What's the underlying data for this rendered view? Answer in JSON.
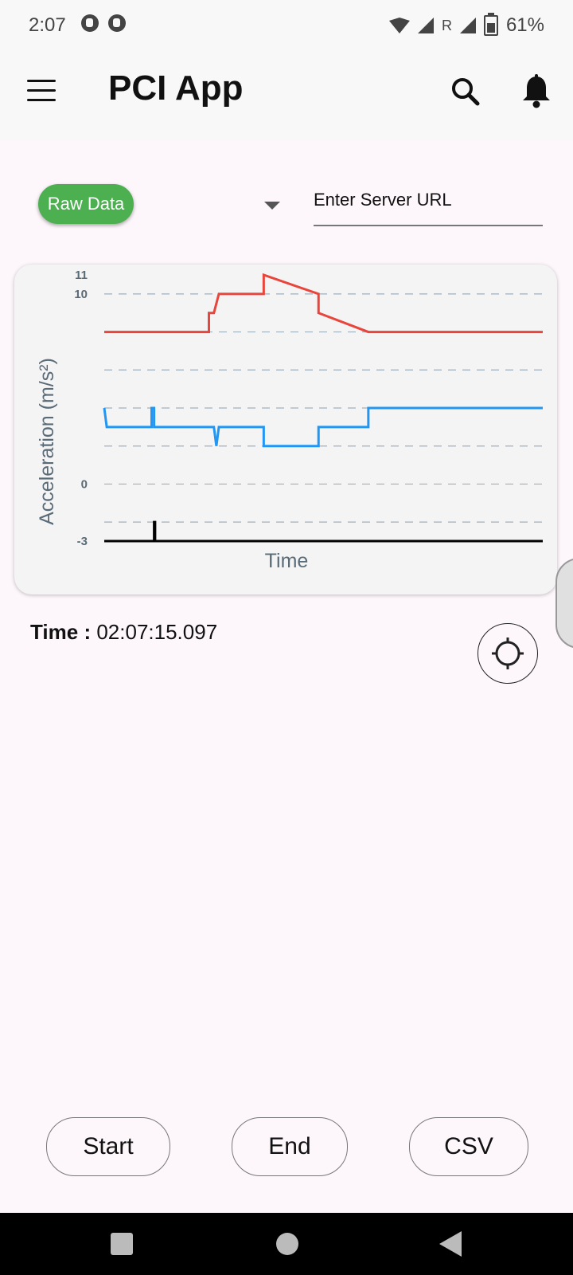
{
  "status_bar": {
    "time": "2:07",
    "network_label": "R",
    "battery": "61%"
  },
  "app_bar": {
    "title": "PCI App"
  },
  "controls": {
    "mode_chip": "Raw Data",
    "server_placeholder": "Enter Server URL"
  },
  "chart_data": {
    "type": "line",
    "ylabel": "Acceleration (m/s²)",
    "xlabel": "Time",
    "ylim": [
      -3,
      11
    ],
    "y_ticks": [
      "11",
      "10",
      "0",
      "-3"
    ],
    "grid": "horizontal dashed",
    "series": [
      {
        "color": "#e8453c",
        "x": [
          0,
          21,
          21,
          22,
          23,
          32,
          32,
          43,
          43,
          53,
          88
        ],
        "y": [
          8,
          8,
          9,
          9,
          10,
          10,
          11,
          10,
          9,
          8,
          8
        ]
      },
      {
        "color": "#2196f3",
        "x": [
          0,
          0.5,
          9.5,
          9.5,
          10,
          10,
          22,
          22.5,
          23,
          32,
          32,
          43,
          43,
          53,
          53,
          88
        ],
        "y": [
          4,
          3,
          3,
          4,
          4,
          3,
          3,
          2,
          3,
          3,
          2,
          2,
          3,
          3,
          4,
          4
        ]
      },
      {
        "color": "#000000",
        "x": [
          0,
          10,
          10,
          10.2,
          10.2,
          88
        ],
        "y": [
          -3,
          -3,
          -2,
          -2,
          -3,
          -3
        ]
      }
    ]
  },
  "time_display": {
    "label": "Time :",
    "value": "02:07:15.097"
  },
  "actions": {
    "start": "Start",
    "end": "End",
    "csv": "CSV"
  }
}
